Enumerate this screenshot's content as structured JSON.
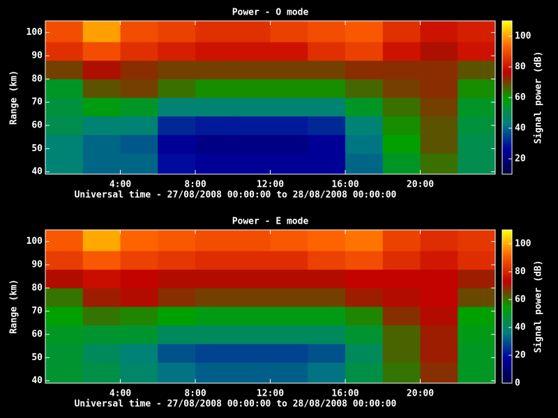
{
  "chart_data": [
    {
      "type": "heatmap",
      "title": "Power - O mode",
      "x_label": "Universal time - 27/08/2008 00:00:00 to 28/08/2008 00:00:00",
      "y_label": "Range (km)",
      "colorbar_label": "Signal power (dB)",
      "x_bins": [
        0,
        2,
        4,
        6,
        8,
        10,
        12,
        14,
        16,
        18,
        20,
        22,
        24
      ],
      "y_bins": [
        39,
        48,
        56,
        64,
        72,
        80,
        88,
        96,
        105
      ],
      "values": [
        [
          45,
          40,
          40,
          28,
          25,
          25,
          25,
          25,
          40,
          55,
          65,
          50
        ],
        [
          45,
          40,
          38,
          25,
          22,
          22,
          22,
          25,
          42,
          60,
          68,
          50
        ],
        [
          50,
          45,
          45,
          32,
          30,
          30,
          30,
          32,
          45,
          62,
          68,
          52
        ],
        [
          52,
          58,
          55,
          45,
          45,
          45,
          45,
          45,
          55,
          65,
          70,
          55
        ],
        [
          55,
          68,
          70,
          65,
          62,
          62,
          62,
          62,
          66,
          70,
          72,
          62
        ],
        [
          70,
          75,
          72,
          70,
          70,
          70,
          70,
          70,
          72,
          72,
          72,
          68
        ],
        [
          85,
          90,
          85,
          82,
          80,
          80,
          80,
          85,
          88,
          80,
          75,
          80
        ],
        [
          90,
          100,
          90,
          88,
          85,
          85,
          88,
          90,
          92,
          85,
          80,
          82
        ]
      ],
      "xlim": [
        0,
        24
      ],
      "xticks": [
        {
          "value": 4,
          "label": "4:00"
        },
        {
          "value": 8,
          "label": "8:00"
        },
        {
          "value": 12,
          "label": "12:00"
        },
        {
          "value": 16,
          "label": "16:00"
        },
        {
          "value": 20,
          "label": "20:00"
        }
      ],
      "ylim": [
        39,
        105
      ],
      "yticks": [
        40,
        50,
        60,
        70,
        80,
        90,
        100
      ],
      "clim": [
        10,
        110
      ],
      "cticks": [
        20,
        40,
        60,
        80,
        100
      ],
      "colormap": [
        "#000040",
        "#0000a0",
        "#008080",
        "#00a000",
        "#c00000",
        "#ff6000",
        "#ffff00"
      ]
    },
    {
      "type": "heatmap",
      "title": "Power - E mode",
      "x_label": "Universal time - 27/08/2008 00:00:00 to 28/08/2008 00:00:00",
      "y_label": "Range (km)",
      "colorbar_label": "Signal power (dB)",
      "x_bins": [
        0,
        2,
        4,
        6,
        8,
        10,
        12,
        14,
        16,
        18,
        20,
        22,
        24
      ],
      "y_bins": [
        39,
        48,
        56,
        64,
        72,
        80,
        88,
        96,
        105
      ],
      "values": [
        [
          48,
          45,
          40,
          35,
          32,
          32,
          32,
          35,
          45,
          60,
          68,
          50
        ],
        [
          48,
          42,
          38,
          30,
          28,
          28,
          28,
          30,
          42,
          62,
          70,
          50
        ],
        [
          50,
          48,
          48,
          42,
          42,
          42,
          42,
          42,
          48,
          62,
          70,
          52
        ],
        [
          55,
          60,
          58,
          55,
          52,
          52,
          52,
          52,
          58,
          68,
          72,
          55
        ],
        [
          60,
          70,
          72,
          68,
          66,
          66,
          66,
          66,
          70,
          72,
          74,
          65
        ],
        [
          72,
          76,
          74,
          72,
          72,
          72,
          72,
          72,
          74,
          74,
          74,
          70
        ],
        [
          85,
          90,
          86,
          84,
          82,
          82,
          82,
          86,
          88,
          82,
          78,
          82
        ],
        [
          90,
          100,
          92,
          90,
          88,
          88,
          90,
          92,
          94,
          86,
          82,
          84
        ]
      ],
      "xlim": [
        0,
        24
      ],
      "xticks": [
        {
          "value": 4,
          "label": "4:00"
        },
        {
          "value": 8,
          "label": "8:00"
        },
        {
          "value": 12,
          "label": "12:00"
        },
        {
          "value": 16,
          "label": "16:00"
        },
        {
          "value": 20,
          "label": "20:00"
        }
      ],
      "ylim": [
        39,
        105
      ],
      "yticks": [
        40,
        50,
        60,
        70,
        80,
        90,
        100
      ],
      "clim": [
        0,
        110
      ],
      "cticks": [
        0,
        20,
        40,
        60,
        80,
        100
      ],
      "colormap": [
        "#000040",
        "#0000a0",
        "#008080",
        "#00a000",
        "#c00000",
        "#ff6000",
        "#ffff00"
      ]
    }
  ]
}
